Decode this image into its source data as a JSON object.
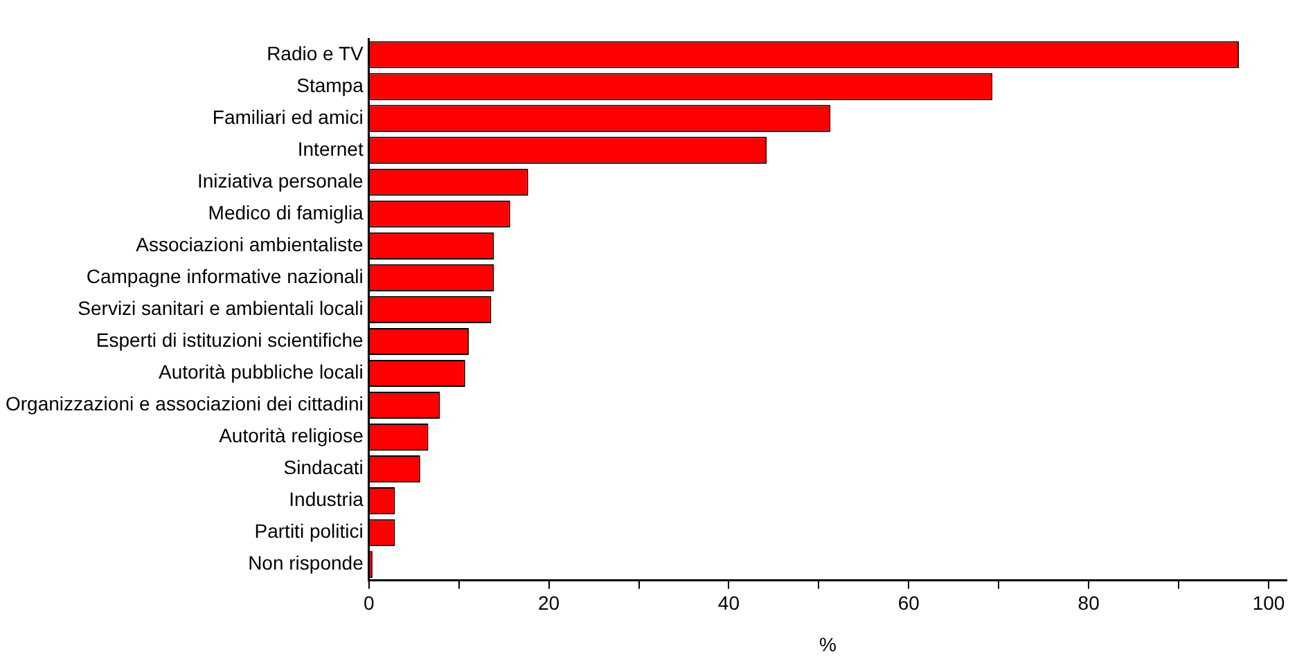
{
  "chart_data": {
    "type": "bar",
    "orientation": "horizontal",
    "xlabel": "%",
    "categories": [
      "Radio e TV",
      "Stampa",
      "Familiari ed amici",
      "Internet",
      "Iniziativa personale",
      "Medico di famiglia",
      "Associazioni ambientaliste",
      "Campagne informative nazionali",
      "Servizi sanitari e ambientali locali",
      "Esperti di istituzioni scientifiche",
      "Autorità pubbliche locali",
      "Organizzazioni e associazioni dei cittadini",
      "Autorità religiose",
      "Sindacati",
      "Industria",
      "Partiti politici",
      "Non risponde"
    ],
    "values": [
      96.7,
      69.3,
      51.3,
      44.2,
      17.7,
      15.7,
      13.9,
      13.9,
      13.6,
      11.1,
      10.7,
      7.9,
      6.6,
      5.7,
      2.9,
      2.9,
      0.4
    ],
    "color": "#ff0000",
    "xlim": [
      0,
      102
    ],
    "xticks": [
      0,
      {
        "value": 10,
        "label": null
      },
      20,
      {
        "value": 30,
        "label": null
      },
      40,
      {
        "value": 50,
        "label": null
      },
      60,
      {
        "value": 70,
        "label": null
      },
      80,
      {
        "value": 90,
        "label": null
      },
      100
    ],
    "grid": false,
    "legend": false
  }
}
